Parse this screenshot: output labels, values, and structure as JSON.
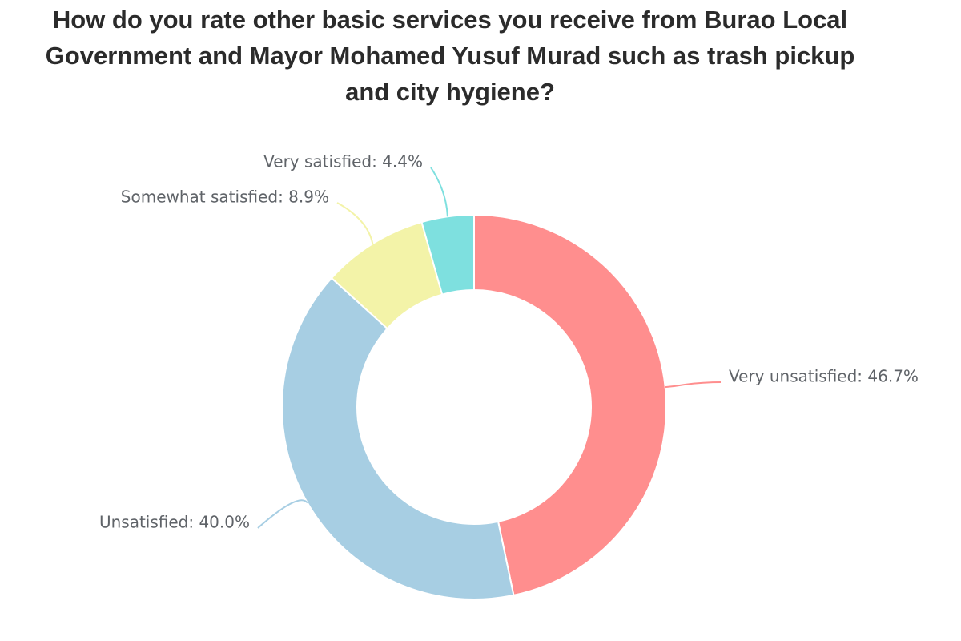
{
  "chart_data": {
    "type": "pie",
    "title": "How do you rate other basic services you receive from Burao Local Government and Mayor Mohamed Yusuf Murad such as trash pickup and city hygiene?",
    "donut": true,
    "slices": [
      {
        "name": "Very unsatisfied",
        "value": 46.7,
        "label": "Very unsatisfied: 46.7%",
        "color": "#ff8e8e"
      },
      {
        "name": "Unsatisfied",
        "value": 40.0,
        "label": "Unsatisfied: 40.0%",
        "color": "#a7cee3"
      },
      {
        "name": "Somewhat satisfied",
        "value": 8.9,
        "label": "Somewhat satisfied: 8.9%",
        "color": "#f3f3a8"
      },
      {
        "name": "Very satisfied",
        "value": 4.4,
        "label": "Very satisfied: 4.4%",
        "color": "#7ee0df"
      }
    ],
    "legend": "none"
  }
}
